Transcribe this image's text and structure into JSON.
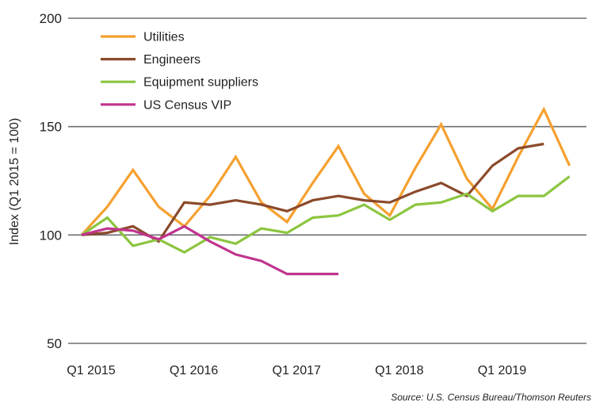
{
  "chart_data": {
    "type": "line",
    "title": "",
    "xlabel": "",
    "ylabel": "Index (Q1 2015 = 100)",
    "ylim": [
      50,
      200
    ],
    "yticks": [
      50,
      100,
      150,
      200
    ],
    "grid": true,
    "legend_position": "top-left",
    "quarters": [
      "2015Q1",
      "2015Q2",
      "2015Q3",
      "2015Q4",
      "2016Q1",
      "2016Q2",
      "2016Q3",
      "2016Q4",
      "2017Q1",
      "2017Q2",
      "2017Q3",
      "2017Q4",
      "2018Q1",
      "2018Q2",
      "2018Q3",
      "2018Q4",
      "2019Q1",
      "2019Q2",
      "2019Q3",
      "2019Q4",
      "2020Q1"
    ],
    "xtick_labels": [
      {
        "label": "Q1 2015",
        "index": 0
      },
      {
        "label": "Q1 2016",
        "index": 4
      },
      {
        "label": "Q1 2017",
        "index": 8
      },
      {
        "label": "Q1 2018",
        "index": 12
      },
      {
        "label": "Q1 2019",
        "index": 16
      }
    ],
    "series": [
      {
        "name": "Utilities",
        "color": "#f5a02f",
        "values": [
          100,
          113,
          130,
          113,
          104,
          118,
          136,
          115,
          106,
          124,
          141,
          119,
          109,
          131,
          151,
          126,
          112,
          136,
          158,
          132,
          null
        ]
      },
      {
        "name": "Engineers",
        "color": "#8b4a2b",
        "values": [
          100,
          101,
          104,
          97,
          115,
          114,
          116,
          114,
          111,
          116,
          118,
          116,
          115,
          120,
          124,
          118,
          132,
          140,
          142,
          null,
          null
        ]
      },
      {
        "name": "Equipment suppliers",
        "color": "#8cc540",
        "values": [
          100,
          108,
          95,
          98,
          92,
          99,
          96,
          103,
          101,
          108,
          109,
          114,
          107,
          114,
          115,
          119,
          111,
          118,
          118,
          127,
          null
        ]
      },
      {
        "name": "US Census VIP",
        "color": "#c0348e",
        "values": [
          100,
          103,
          102,
          98,
          104,
          97,
          91,
          88,
          82,
          82,
          82,
          null,
          null,
          null,
          null,
          null,
          null,
          null,
          null,
          null,
          null
        ]
      }
    ],
    "source": "Source: U.S. Census Bureau/Thomson Reuters"
  }
}
